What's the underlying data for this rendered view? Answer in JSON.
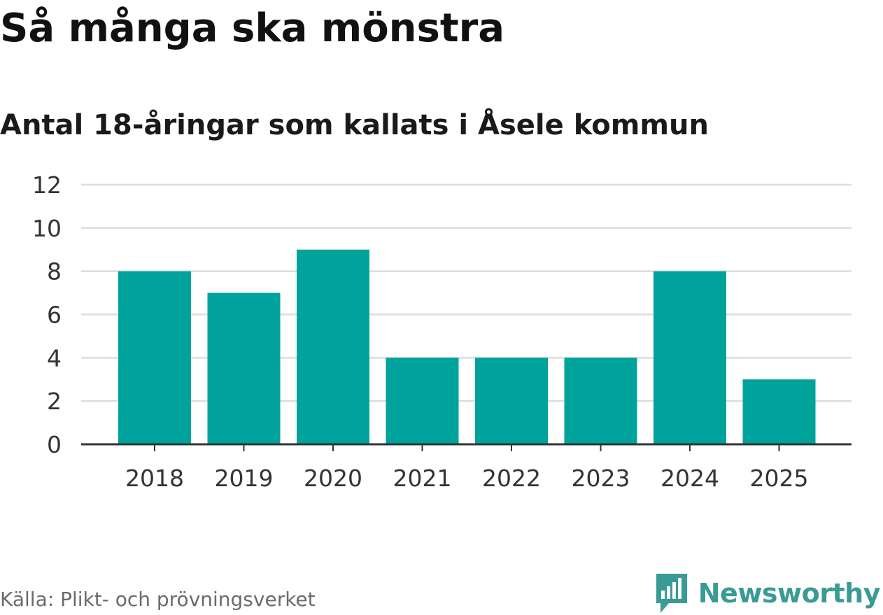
{
  "header": {
    "title": "Så många ska mönstra",
    "subtitle": "Antal 18-åringar som kallats i Åsele kommun"
  },
  "footer": {
    "source": "Källa: Plikt- och prövningsverket",
    "brand": "Newsworthy"
  },
  "colors": {
    "bar": "#00a39b",
    "grid": "#dddddd",
    "axis": "#333333",
    "brand": "#3a9b95"
  },
  "icons": {
    "logo": "bar-chart-speech-bubble-icon"
  },
  "chart_data": {
    "type": "bar",
    "categories": [
      "2018",
      "2019",
      "2020",
      "2021",
      "2022",
      "2023",
      "2024",
      "2025"
    ],
    "values": [
      8,
      7,
      9,
      4,
      4,
      4,
      8,
      3
    ],
    "title": "Så många ska mönstra",
    "subtitle": "Antal 18-åringar som kallats i Åsele kommun",
    "xlabel": "",
    "ylabel": "",
    "ylim": [
      0,
      12
    ],
    "yticks": [
      0,
      2,
      4,
      6,
      8,
      10,
      12
    ],
    "grid": true,
    "legend": "none"
  }
}
